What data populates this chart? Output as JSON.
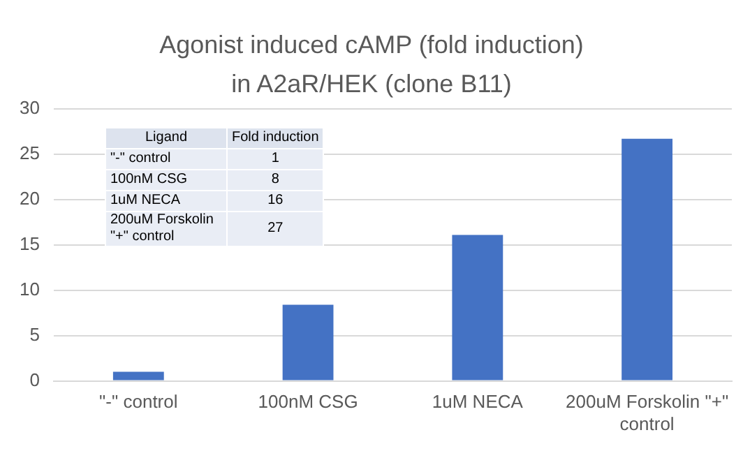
{
  "chart_data": {
    "type": "bar",
    "title": "Agonist induced cAMP (fold induction) in A2aR/HEK (clone B11)",
    "categories": [
      "\"-\" control",
      "100nM CSG",
      "1uM NECA",
      "200uM Forskolin \"+\" control"
    ],
    "values": [
      1.0,
      8.4,
      16.1,
      26.7
    ],
    "color": "#4472c4",
    "annotations": [
      "Ligand",
      "Fold induction",
      "\"-\" control",
      "1",
      "100nM CSG",
      "8",
      "1uM NECA",
      "16",
      "200uM Forskolin \"+\" control",
      "27"
    ],
    "ylim": [
      0,
      30
    ],
    "yticks": [
      0,
      5,
      10,
      15,
      20,
      25,
      30
    ],
    "grid": "y",
    "legend": false
  }
}
